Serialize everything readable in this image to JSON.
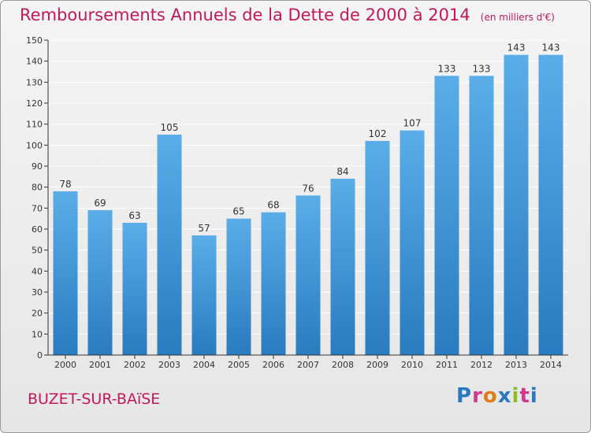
{
  "title": "Remboursements Annuels de la Dette de 2000 à 2014",
  "unit_note": "(en milliers d'€)",
  "place": "BUZET-SUR-BAïSE",
  "logo": {
    "text": "Proxiti",
    "letter_colors": [
      "#2a78c0",
      "#d03a8e",
      "#e07b1d",
      "#2a78c0",
      "#8bbd2a",
      "#d03a8e",
      "#2a78c0"
    ]
  },
  "colors": {
    "bar_top": "#5aade8",
    "bar_bottom": "#2a7bbf",
    "grid": "#ffffff",
    "axis": "#333333",
    "title": "#c2185b"
  },
  "chart_data": {
    "type": "bar",
    "categories": [
      "2000",
      "2001",
      "2002",
      "2003",
      "2004",
      "2005",
      "2006",
      "2007",
      "2008",
      "2009",
      "2010",
      "2011",
      "2012",
      "2013",
      "2014"
    ],
    "values": [
      78,
      69,
      63,
      105,
      57,
      65,
      68,
      76,
      84,
      102,
      107,
      133,
      133,
      143,
      143
    ],
    "title": "Remboursements Annuels de la Dette de 2000 à 2014",
    "xlabel": "",
    "ylabel": "",
    "ylim": [
      0,
      150
    ],
    "yticks": [
      0,
      10,
      20,
      30,
      40,
      50,
      60,
      70,
      80,
      90,
      100,
      110,
      120,
      130,
      140,
      150
    ],
    "grid": true,
    "data_labels": true
  }
}
